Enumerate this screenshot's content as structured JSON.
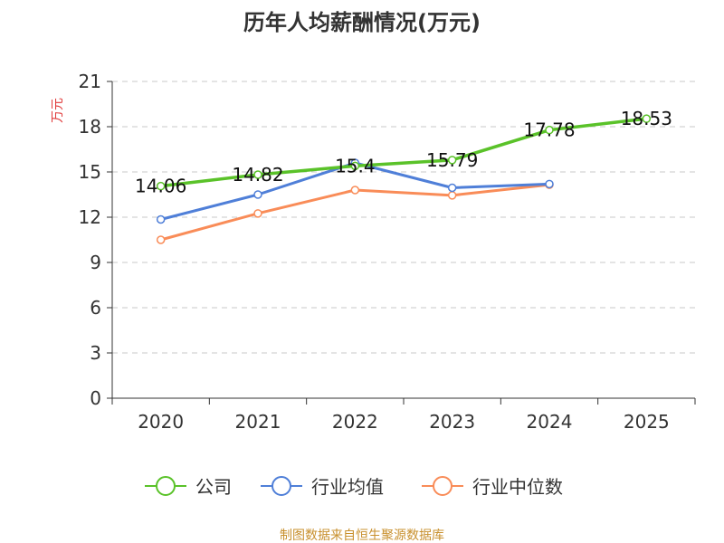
{
  "chart_data": {
    "type": "line",
    "title": "历年人均薪酬情况(万元)",
    "ylabel": "万元",
    "xlabel": "",
    "categories": [
      "2020",
      "2021",
      "2022",
      "2023",
      "2024",
      "2025"
    ],
    "ylim": [
      0,
      21
    ],
    "yticks": [
      0,
      3,
      6,
      9,
      12,
      15,
      18,
      21
    ],
    "grid": true,
    "legend_position": "bottom",
    "series": [
      {
        "name": "公司",
        "color": "#5ac229",
        "values": [
          14.06,
          14.82,
          15.4,
          15.79,
          17.78,
          18.53
        ],
        "labels": [
          "14.06",
          "14.82",
          "15.4",
          "15.79",
          "17.78",
          "18.53"
        ]
      },
      {
        "name": "行业均值",
        "color": "#4f7fd8",
        "values": [
          11.85,
          13.5,
          15.6,
          13.95,
          14.2,
          null
        ]
      },
      {
        "name": "行业中位数",
        "color": "#f98c58",
        "values": [
          10.5,
          12.25,
          13.8,
          13.45,
          14.15,
          null
        ]
      }
    ]
  },
  "source_note": "制图数据来自恒生聚源数据库"
}
